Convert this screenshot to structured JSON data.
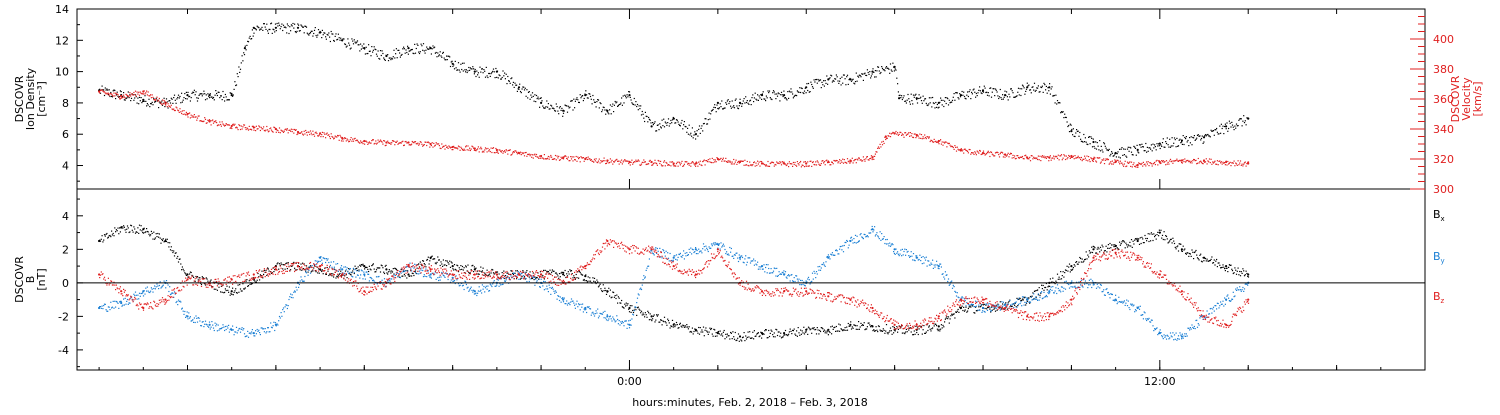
{
  "chart_data": [
    {
      "type": "scatter",
      "panel": "top",
      "left_axis": {
        "label_lines": [
          "DSCOVR",
          "Ion Density",
          "[cm⁻³]"
        ],
        "ylim": [
          2.5,
          14
        ],
        "ticks": [
          4,
          6,
          8,
          10,
          12,
          14
        ],
        "color": "#000000"
      },
      "right_axis": {
        "label_lines": [
          "DSCOVR",
          "Velocity",
          "[km/s]"
        ],
        "ylim": [
          300,
          420
        ],
        "ticks": [
          300,
          320,
          340,
          360,
          380,
          400
        ],
        "color": "#e02020"
      },
      "series": [
        {
          "name": "",
          "axis": "left",
          "color": "#000000",
          "x": [
            -12.0,
            -11.5,
            -11.0,
            -10.5,
            -10.0,
            -9.5,
            -9.0,
            -8.7,
            -8.5,
            -8.0,
            -7.5,
            -7.0,
            -6.5,
            -6.0,
            -5.5,
            -5.0,
            -4.5,
            -4.0,
            -3.5,
            -3.0,
            -2.5,
            -2.0,
            -1.5,
            -1.0,
            -0.5,
            0.0,
            0.5,
            1.0,
            1.5,
            2.0,
            2.5,
            3.0,
            3.5,
            4.0,
            4.5,
            5.0,
            5.5,
            6.0,
            6.1,
            6.5,
            7.0,
            7.5,
            8.0,
            8.5,
            9.0,
            9.5,
            10.0,
            10.5,
            11.0,
            11.5,
            12.0,
            12.5,
            13.0,
            13.5,
            14.0
          ],
          "y": [
            8.8,
            8.5,
            8.2,
            8.0,
            8.5,
            8.5,
            8.5,
            11.5,
            12.8,
            12.8,
            12.8,
            12.5,
            12.0,
            11.5,
            11.0,
            11.5,
            11.5,
            10.5,
            10.0,
            10.0,
            9.0,
            8.0,
            7.5,
            8.5,
            7.5,
            8.5,
            6.5,
            7.0,
            6.0,
            8.0,
            8.0,
            8.5,
            8.5,
            9.0,
            9.5,
            9.5,
            10.0,
            10.3,
            8.3,
            8.3,
            8.0,
            8.5,
            8.8,
            8.5,
            9.0,
            9.0,
            6.2,
            5.5,
            4.8,
            5.0,
            5.4,
            5.6,
            5.8,
            6.5,
            7.0
          ]
        },
        {
          "name": "",
          "axis": "right",
          "color": "#e02020",
          "x": [
            -12.0,
            -11.5,
            -11.0,
            -10.5,
            -10.0,
            -9.5,
            -9.0,
            -8.5,
            -8.0,
            -7.5,
            -7.0,
            -6.5,
            -6.0,
            -5.5,
            -5.0,
            -4.5,
            -4.0,
            -3.5,
            -3.0,
            -2.5,
            -2.0,
            -1.5,
            -1.0,
            -0.5,
            0.0,
            0.5,
            1.0,
            1.5,
            2.0,
            2.5,
            3.0,
            3.5,
            4.0,
            4.5,
            5.0,
            5.5,
            5.8,
            6.0,
            6.5,
            7.0,
            7.5,
            8.0,
            8.5,
            9.0,
            9.5,
            10.0,
            10.5,
            11.0,
            11.5,
            12.0,
            12.5,
            13.0,
            13.5,
            14.0
          ],
          "y": [
            365,
            362,
            365,
            357,
            350,
            345,
            342,
            341,
            340,
            338,
            337,
            334,
            332,
            331,
            331,
            330,
            328,
            327,
            326,
            324,
            322,
            321,
            320,
            319,
            318,
            318,
            317,
            317,
            320,
            318,
            317,
            317,
            317,
            318,
            319,
            321,
            335,
            337,
            336,
            332,
            326,
            324,
            323,
            321,
            321,
            322,
            320,
            318,
            316,
            318,
            319,
            319,
            318,
            317
          ]
        }
      ]
    },
    {
      "type": "scatter",
      "panel": "bottom",
      "left_axis": {
        "label_lines": [
          "DSCOVR",
          "B",
          "[nT]"
        ],
        "ylim": [
          -5.2,
          5.6
        ],
        "ticks": [
          -4,
          -2,
          0,
          2,
          4
        ],
        "color": "#000000"
      },
      "legend": [
        {
          "base": "B",
          "sub": "x",
          "color": "#000000"
        },
        {
          "base": "B",
          "sub": "y",
          "color": "#1a7fd4"
        },
        {
          "base": "B",
          "sub": "z",
          "color": "#e02020"
        }
      ],
      "legend_position": "right",
      "series": [
        {
          "name": "Bx",
          "color": "#000000",
          "x": [
            -12.0,
            -11.5,
            -11.0,
            -10.5,
            -10.0,
            -9.5,
            -9.0,
            -8.5,
            -8.0,
            -7.5,
            -7.0,
            -6.5,
            -6.0,
            -5.5,
            -5.0,
            -4.5,
            -4.0,
            -3.5,
            -3.0,
            -2.5,
            -2.0,
            -1.5,
            -1.0,
            -0.5,
            0.0,
            0.5,
            1.0,
            1.5,
            2.0,
            2.5,
            3.0,
            3.5,
            4.0,
            4.5,
            5.0,
            5.5,
            6.0,
            6.5,
            7.0,
            7.5,
            8.0,
            8.5,
            9.0,
            9.5,
            10.0,
            10.5,
            11.0,
            11.5,
            12.0,
            12.5,
            13.0,
            13.5,
            14.0
          ],
          "y": [
            2.5,
            3.3,
            3.2,
            2.5,
            0.5,
            0.0,
            -0.5,
            0.2,
            1.0,
            1.0,
            0.8,
            0.5,
            1.0,
            0.8,
            0.5,
            1.5,
            1.0,
            0.8,
            0.5,
            0.5,
            0.5,
            0.6,
            0.4,
            -0.5,
            -1.5,
            -2.0,
            -2.5,
            -2.8,
            -3.0,
            -3.2,
            -3.0,
            -3.0,
            -2.8,
            -2.8,
            -2.5,
            -2.6,
            -2.8,
            -2.8,
            -2.6,
            -1.5,
            -1.5,
            -1.3,
            -1.0,
            0.0,
            1.0,
            2.0,
            2.2,
            2.5,
            3.0,
            2.0,
            1.5,
            1.0,
            0.5
          ]
        },
        {
          "name": "By",
          "color": "#1a7fd4",
          "x": [
            -12.0,
            -11.5,
            -11.0,
            -10.5,
            -10.0,
            -9.5,
            -9.0,
            -8.5,
            -8.0,
            -7.5,
            -7.0,
            -6.5,
            -6.0,
            -5.5,
            -5.0,
            -4.5,
            -4.0,
            -3.5,
            -3.0,
            -2.5,
            -2.0,
            -1.5,
            -1.0,
            -0.5,
            0.0,
            0.5,
            1.0,
            1.5,
            2.0,
            2.5,
            3.0,
            3.5,
            4.0,
            4.5,
            5.0,
            5.5,
            6.0,
            6.5,
            7.0,
            7.5,
            8.0,
            8.5,
            9.0,
            9.5,
            10.0,
            10.5,
            11.0,
            11.5,
            12.0,
            12.5,
            13.0,
            13.5,
            14.0
          ],
          "y": [
            -1.5,
            -1.2,
            -0.5,
            0.0,
            -2.0,
            -2.5,
            -2.8,
            -3.0,
            -2.5,
            0.0,
            1.5,
            0.8,
            0.5,
            0.0,
            1.0,
            0.5,
            0.3,
            -0.5,
            0.0,
            0.5,
            0.0,
            -1.0,
            -1.5,
            -2.0,
            -2.5,
            2.0,
            1.5,
            2.0,
            2.3,
            1.5,
            1.0,
            0.5,
            0.0,
            1.5,
            2.5,
            3.2,
            2.0,
            1.5,
            1.0,
            -1.0,
            -1.5,
            -1.3,
            -1.0,
            -0.5,
            0.0,
            0.0,
            -1.0,
            -1.5,
            -3.0,
            -3.2,
            -2.0,
            -1.0,
            0.0
          ]
        },
        {
          "name": "Bz",
          "color": "#e02020",
          "x": [
            -12.0,
            -11.5,
            -11.0,
            -10.5,
            -10.0,
            -9.5,
            -9.0,
            -8.5,
            -8.0,
            -7.5,
            -7.0,
            -6.5,
            -6.0,
            -5.5,
            -5.0,
            -4.5,
            -4.0,
            -3.5,
            -3.0,
            -2.5,
            -2.0,
            -1.5,
            -1.0,
            -0.5,
            0.0,
            0.5,
            1.0,
            1.5,
            2.0,
            2.5,
            3.0,
            3.5,
            4.0,
            4.5,
            5.0,
            5.5,
            6.0,
            6.5,
            7.0,
            7.5,
            8.0,
            8.5,
            9.0,
            9.5,
            10.0,
            10.5,
            11.0,
            11.5,
            12.0,
            12.5,
            13.0,
            13.5,
            14.0
          ],
          "y": [
            0.5,
            -0.5,
            -1.5,
            -1.0,
            0.2,
            0.0,
            0.2,
            0.5,
            0.8,
            1.0,
            1.0,
            0.5,
            -0.5,
            0.0,
            1.0,
            0.8,
            0.5,
            0.5,
            0.5,
            0.5,
            0.5,
            0.0,
            1.0,
            2.5,
            2.0,
            2.0,
            1.0,
            0.5,
            2.0,
            0.0,
            -0.5,
            -0.5,
            -0.5,
            -0.8,
            -1.0,
            -1.5,
            -2.5,
            -2.5,
            -2.0,
            -1.0,
            -1.0,
            -1.5,
            -2.0,
            -2.0,
            -1.0,
            1.5,
            1.8,
            1.5,
            0.5,
            -0.5,
            -2.0,
            -2.5,
            -1.0
          ]
        }
      ]
    }
  ],
  "x_axis": {
    "range_hours": [
      -12.5,
      18.0
    ],
    "tick_labels": [
      {
        "hour": 0,
        "label": "0:00"
      },
      {
        "hour": 12,
        "label": "12:00"
      }
    ],
    "minor_ticks_hours": [
      -10,
      -8,
      -6,
      -4,
      -2,
      2,
      4,
      6,
      8,
      10,
      14,
      16
    ],
    "title": "hours:minutes, Feb.  2, 2018 – Feb.  3, 2018"
  },
  "reference_lines": {
    "bottom_panel_zero": 0
  }
}
